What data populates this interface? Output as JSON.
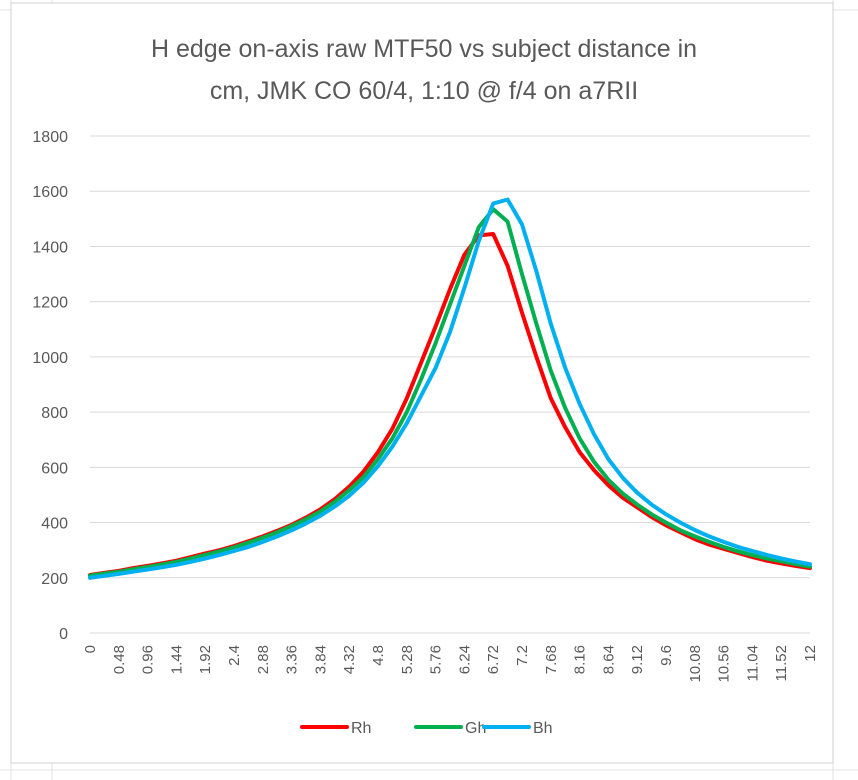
{
  "chart_data": {
    "type": "line",
    "title_lines": [
      "H edge on-axis raw MTF50 vs subject distance in",
      "cm, JMK CO 60/4, 1:10 @ f/4 on a7RII"
    ],
    "xlabel": "",
    "ylabel": "",
    "ylim": [
      0,
      1800
    ],
    "yticks": [
      0,
      200,
      400,
      600,
      800,
      1000,
      1200,
      1400,
      1600,
      1800
    ],
    "x_tick_labels": [
      "0",
      "0.48",
      "0.96",
      "1.44",
      "1.92",
      "2.4",
      "2.88",
      "3.36",
      "3.84",
      "4.32",
      "4.8",
      "5.28",
      "5.76",
      "6.24",
      "6.72",
      "7.2",
      "7.68",
      "8.16",
      "8.64",
      "9.12",
      "9.6",
      "10.08",
      "10.56",
      "11.04",
      "11.52",
      "12"
    ],
    "x": [
      0,
      0.24,
      0.48,
      0.72,
      0.96,
      1.2,
      1.44,
      1.68,
      1.92,
      2.16,
      2.4,
      2.64,
      2.88,
      3.12,
      3.36,
      3.6,
      3.84,
      4.08,
      4.32,
      4.56,
      4.8,
      5.04,
      5.28,
      5.52,
      5.76,
      6.0,
      6.24,
      6.48,
      6.72,
      6.96,
      7.2,
      7.44,
      7.68,
      7.92,
      8.16,
      8.4,
      8.64,
      8.88,
      9.12,
      9.36,
      9.6,
      9.84,
      10.08,
      10.32,
      10.56,
      10.8,
      11.04,
      11.28,
      11.52,
      11.76,
      12.0
    ],
    "grid": true,
    "legend": "bottom",
    "series": [
      {
        "name": "Rh",
        "color": "#ff0000",
        "values": [
          210,
          218,
          225,
          235,
          243,
          252,
          262,
          275,
          288,
          300,
          315,
          332,
          350,
          370,
          392,
          418,
          448,
          485,
          530,
          585,
          655,
          740,
          850,
          980,
          1110,
          1245,
          1370,
          1440,
          1445,
          1330,
          1160,
          1000,
          850,
          745,
          655,
          590,
          535,
          490,
          455,
          420,
          390,
          365,
          340,
          320,
          305,
          290,
          275,
          262,
          252,
          243,
          235
        ]
      },
      {
        "name": "Gh",
        "color": "#00b050",
        "values": [
          208,
          215,
          222,
          231,
          239,
          248,
          258,
          270,
          283,
          296,
          310,
          327,
          345,
          365,
          387,
          412,
          440,
          475,
          517,
          565,
          630,
          705,
          800,
          920,
          1050,
          1190,
          1330,
          1470,
          1535,
          1490,
          1300,
          1120,
          950,
          815,
          705,
          620,
          555,
          505,
          465,
          430,
          400,
          372,
          350,
          330,
          312,
          296,
          282,
          270,
          260,
          250,
          240
        ]
      },
      {
        "name": "Bh",
        "color": "#00b0f0",
        "values": [
          200,
          207,
          214,
          222,
          230,
          238,
          247,
          258,
          270,
          283,
          297,
          312,
          330,
          350,
          372,
          397,
          425,
          458,
          497,
          545,
          605,
          675,
          760,
          860,
          960,
          1090,
          1250,
          1420,
          1555,
          1570,
          1480,
          1310,
          1120,
          960,
          830,
          720,
          630,
          562,
          508,
          465,
          430,
          400,
          373,
          350,
          330,
          312,
          297,
          283,
          270,
          259,
          249
        ]
      }
    ]
  }
}
